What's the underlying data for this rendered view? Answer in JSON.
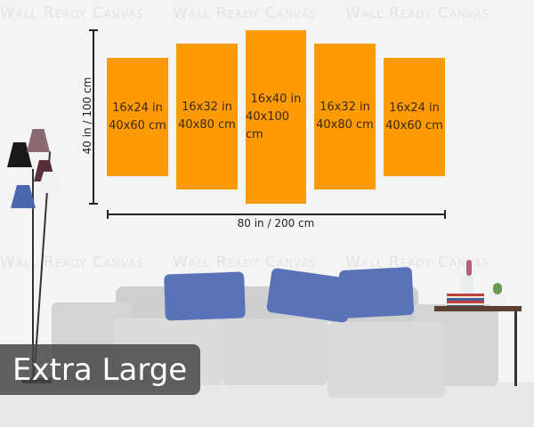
{
  "watermark": "Wall Ready Canvas",
  "height_label": "40 in / 100 cm",
  "width_label": "80 in / 200 cm",
  "panels": [
    {
      "in": "16x24 in",
      "cm": "40x60 cm"
    },
    {
      "in": "16x32 in",
      "cm": "40x80 cm"
    },
    {
      "in": "16x40 in",
      "cm": "40x100 cm"
    },
    {
      "in": "16x32 in",
      "cm": "40x80 cm"
    },
    {
      "in": "16x24 in",
      "cm": "40x60 cm"
    }
  ],
  "size_badge": "Extra Large",
  "colors": {
    "panel": "#fe9a03",
    "pillow": "#5a72b8",
    "sofa": "#d4d4d4"
  }
}
